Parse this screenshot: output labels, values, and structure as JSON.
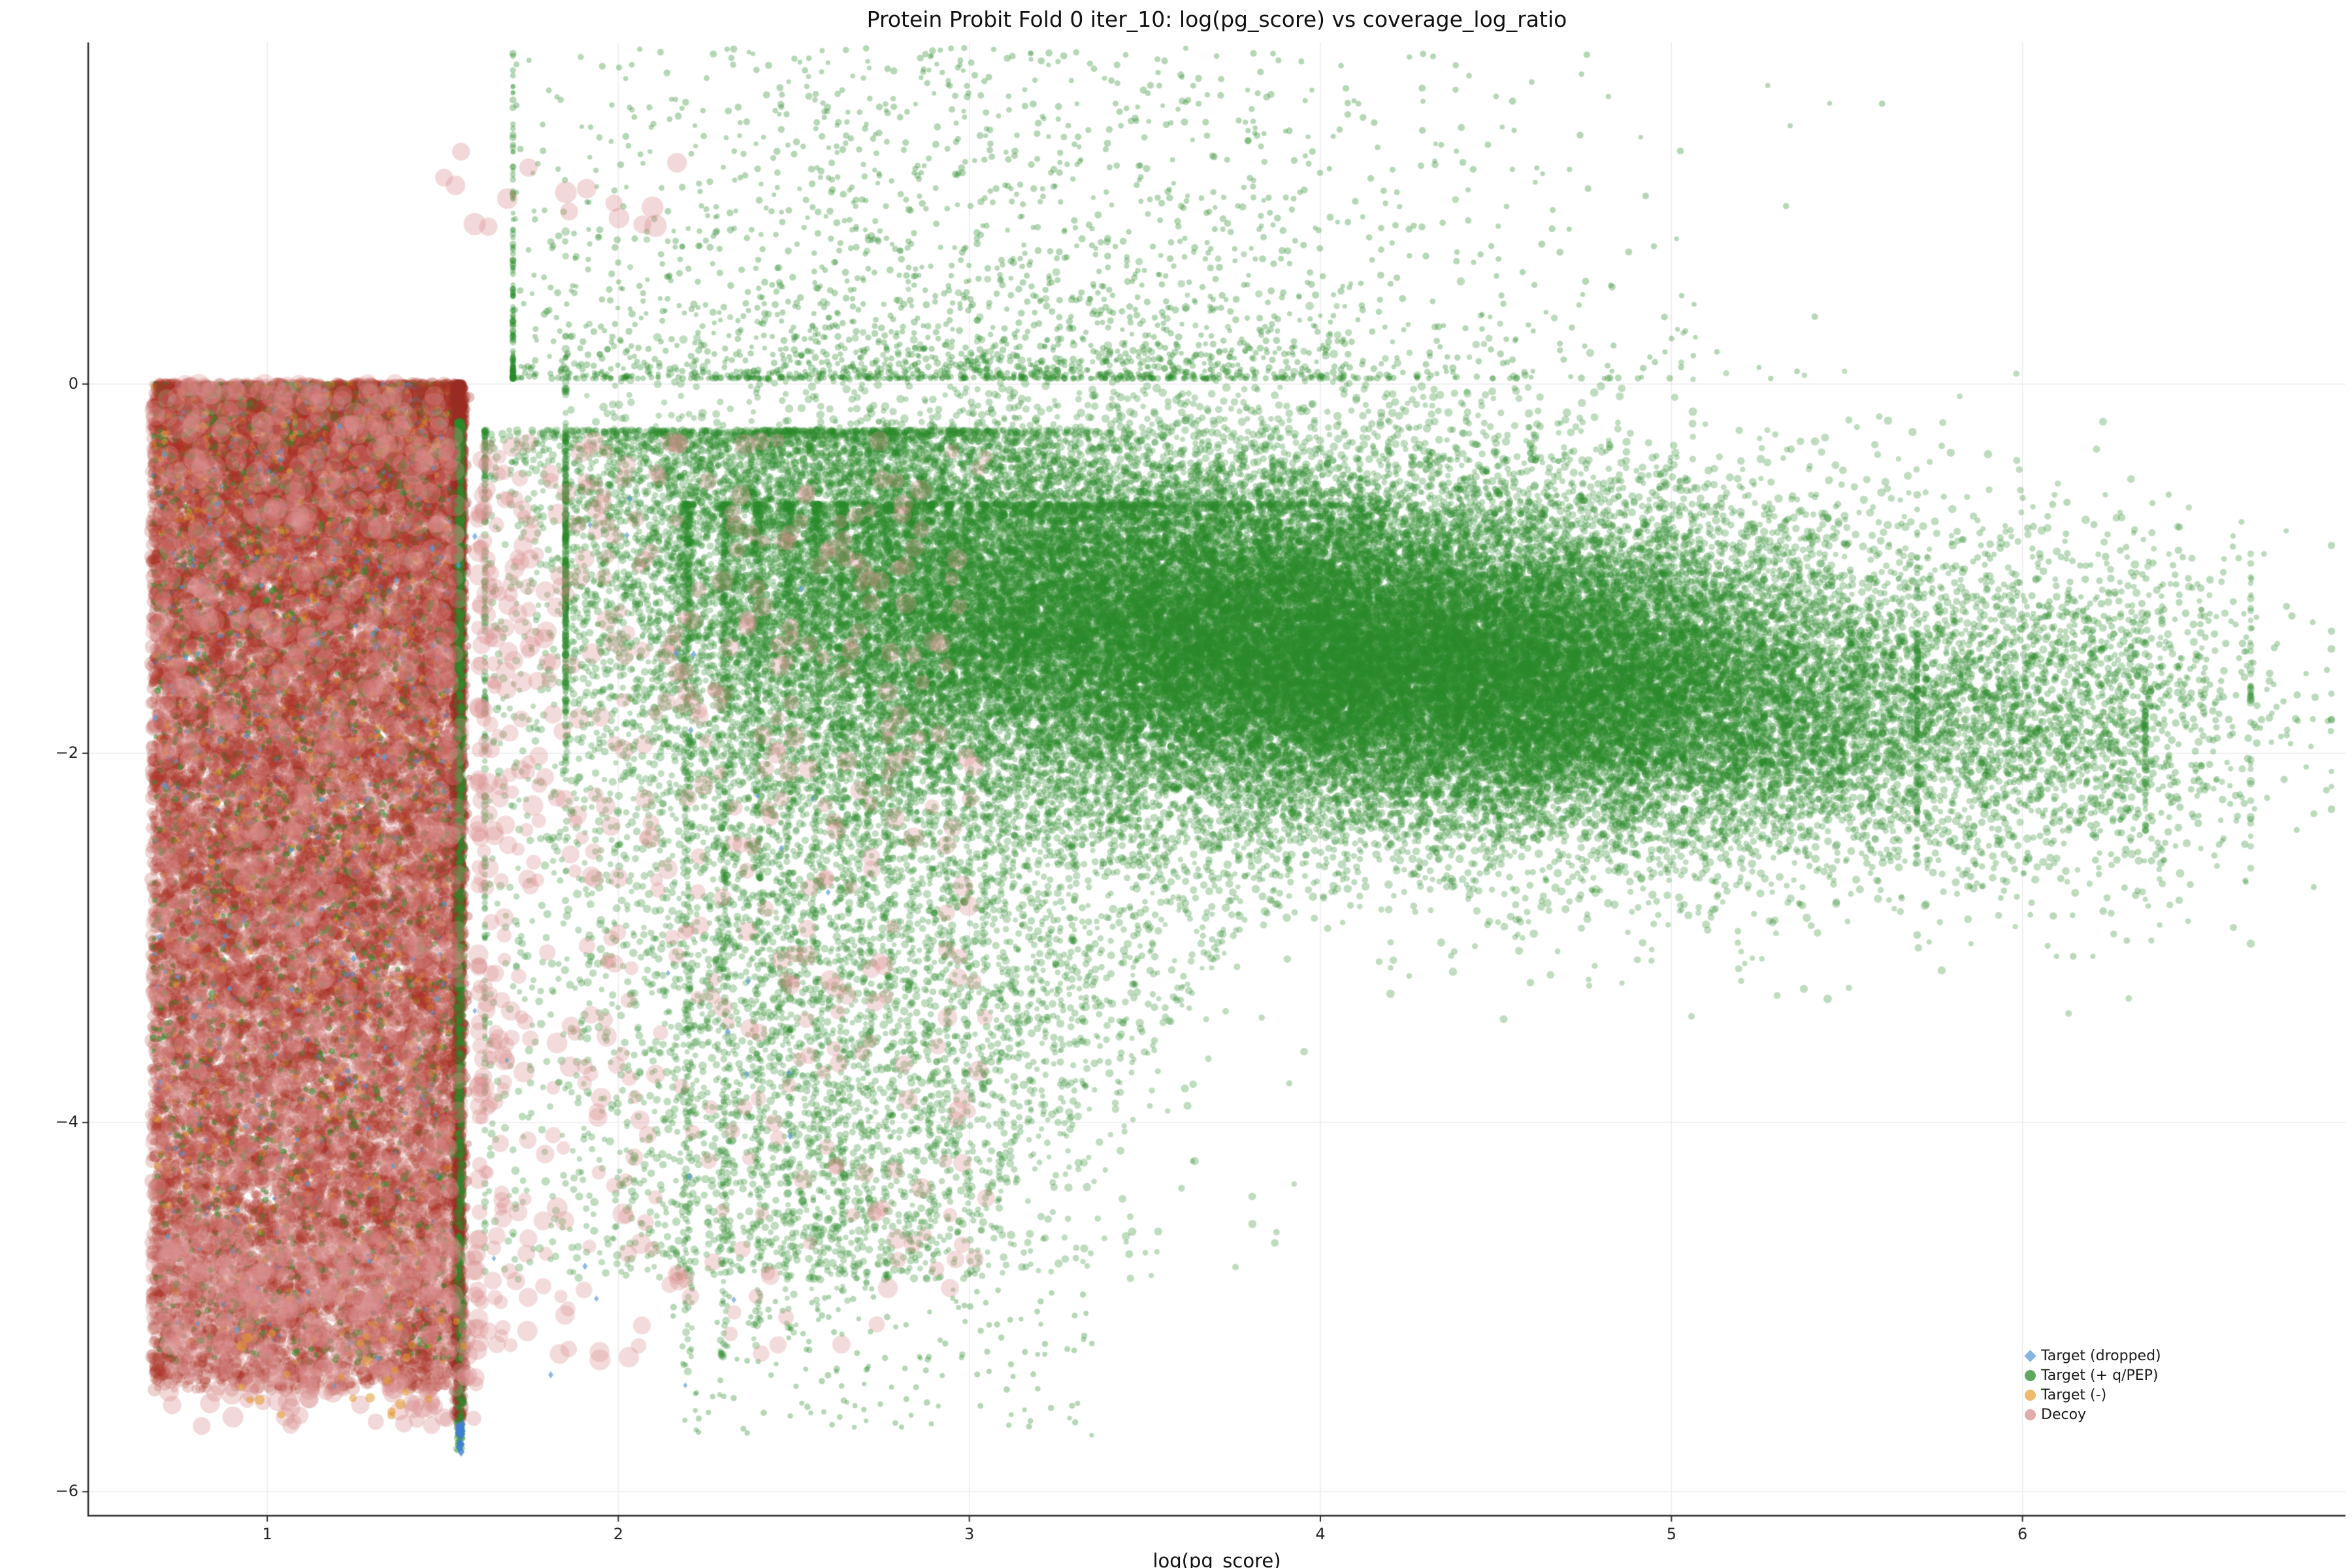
{
  "chart_data": {
    "type": "scatter",
    "title": "Protein Probit Fold 0 iter_10: log(pg_score) vs coverage_log_ratio",
    "xlabel": "log(pg_score)",
    "ylabel": "",
    "xlim": [
      0.49,
      6.92
    ],
    "ylim": [
      -6.13,
      1.85
    ],
    "grid": true,
    "grid_color": "#ececec",
    "spine_color": "#2b2b2b",
    "xticks": [
      {
        "v": 1,
        "label": "1"
      },
      {
        "v": 2,
        "label": "2"
      },
      {
        "v": 3,
        "label": "3"
      },
      {
        "v": 4,
        "label": "4"
      },
      {
        "v": 5,
        "label": "5"
      },
      {
        "v": 6,
        "label": "6"
      }
    ],
    "yticks": [
      {
        "v": 0,
        "label": "0"
      },
      {
        "v": -2,
        "label": "−2"
      },
      {
        "v": -4,
        "label": "−4"
      },
      {
        "v": -6,
        "label": "−6"
      }
    ],
    "legend": {
      "position": "bottom-right",
      "entries": [
        {
          "label": "Target (dropped)",
          "color": "#5b9bd5",
          "marker": "diamond",
          "slug": "target-dropped"
        },
        {
          "label": "Target (+ q/PEP)",
          "color": "#2a8b2a",
          "marker": "circle",
          "slug": "target-plus-qpep"
        },
        {
          "label": "Target (-)",
          "color": "#e8a33d",
          "marker": "circle",
          "slug": "target-minus"
        },
        {
          "label": "Decoy",
          "color": "#d99090",
          "marker": "circle",
          "slug": "decoy"
        }
      ]
    },
    "clusters": [
      {
        "name": "decoy-block-under",
        "color": "#ab3226",
        "alpha": 0.22,
        "r": [
          5,
          12
        ],
        "count": 14000,
        "x": {
          "type": "uniform",
          "a": 0.67,
          "b": 1.555
        },
        "y": {
          "type": "pow",
          "a": 0,
          "b": -5.45,
          "p": 1.35
        }
      },
      {
        "name": "block-specks-green",
        "color": "#2f8f2f",
        "alpha": 0.55,
        "r": [
          3.5,
          5.5
        ],
        "count": 2600,
        "x": {
          "type": "uniform",
          "a": 0.675,
          "b": 1.552
        },
        "y": {
          "type": "pow",
          "a": 0,
          "b": -5.3,
          "p": 1.5
        }
      },
      {
        "name": "block-specks-orange",
        "color": "#e39b2d",
        "alpha": 0.5,
        "r": [
          3.5,
          6
        ],
        "count": 900,
        "x": {
          "type": "uniform",
          "a": 0.675,
          "b": 1.552
        },
        "y": {
          "type": "pow",
          "a": 0,
          "b": -5.3,
          "p": 1.5
        }
      },
      {
        "name": "block-specks-blue",
        "color": "#4f94d4",
        "alpha": 0.65,
        "r": [
          3,
          4.5
        ],
        "count": 450,
        "x": {
          "type": "uniform",
          "a": 0.675,
          "b": 1.552
        },
        "y": {
          "type": "pow",
          "a": 0,
          "b": -5.3,
          "p": 1.5
        }
      },
      {
        "name": "decoy-block-over",
        "color": "#a93226",
        "alpha": 0.2,
        "r": [
          5,
          11
        ],
        "count": 7000,
        "x": {
          "type": "uniform",
          "a": 0.67,
          "b": 1.555
        },
        "y": {
          "type": "pow",
          "a": 0,
          "b": -5.4,
          "p": 1.3
        }
      },
      {
        "name": "decoy-edge-line",
        "color": "#9c2f23",
        "alpha": 0.3,
        "r": [
          4,
          9
        ],
        "count": 2600,
        "x": {
          "type": "normal",
          "mean": 1.547,
          "sd": 0.008,
          "clip": [
            1.5,
            1.58
          ]
        },
        "y": {
          "type": "pow",
          "a": 0,
          "b": -5.65,
          "p": 1.5
        }
      },
      {
        "name": "target-band",
        "color": "#2a8b2a",
        "alpha": 0.3,
        "r": [
          4,
          6.5
        ],
        "count": 34000,
        "x": {
          "type": "normal",
          "mean": 3.95,
          "sd": 0.9,
          "clip": [
            1.85,
            6.65
          ]
        },
        "y": {
          "type": "trend",
          "m0": -0.7,
          "slope": -0.17,
          "sd": 0.52
        }
      },
      {
        "name": "target-core",
        "color": "#2a8b2a",
        "alpha": 0.3,
        "r": [
          4,
          6.5
        ],
        "count": 15000,
        "x": {
          "type": "normal",
          "mean": 4.35,
          "sd": 0.75,
          "clip": [
            2.2,
            6.35
          ]
        },
        "y": {
          "type": "trend",
          "m0": -0.85,
          "slope": -0.17,
          "sd": 0.34
        }
      },
      {
        "name": "target-left-spread",
        "color": "#2a8b2a",
        "alpha": 0.3,
        "r": [
          4,
          6.5
        ],
        "count": 9000,
        "x": {
          "type": "normal",
          "mean": 2.55,
          "sd": 0.45,
          "clip": [
            1.62,
            4.2
          ]
        },
        "y": {
          "type": "pow",
          "a": -0.25,
          "b": -4.85,
          "p": 1.8
        }
      },
      {
        "name": "target-edge-line",
        "color": "#2a8b2a",
        "alpha": 0.35,
        "r": [
          3.5,
          5.5
        ],
        "count": 1300,
        "x": {
          "type": "normal",
          "mean": 1.549,
          "sd": 0.006,
          "clip": [
            1.53,
            1.57
          ]
        },
        "y": {
          "type": "pow",
          "a": -0.2,
          "b": -5.78,
          "p": 1.35
        }
      },
      {
        "name": "target-stripes",
        "type": "stripes",
        "color": "#2a8b2a",
        "alpha": 0.3,
        "r": [
          3.5,
          6
        ],
        "nMin": 9,
        "nMax": 64,
        "countStart": 380,
        "decay": 0.94,
        "jitter": 0.009,
        "top": -0.65,
        "bottomStart": -5.35,
        "bottomSlope": 0.07,
        "bottomCap": -2.7,
        "yPow": 2.2
      },
      {
        "name": "target-top-sparse",
        "color": "#2a8b2a",
        "alpha": 0.35,
        "r": [
          3.5,
          5.5
        ],
        "count": 2400,
        "x": {
          "type": "normal",
          "mean": 3.0,
          "sd": 0.85,
          "clip": [
            1.7,
            5.6
          ]
        },
        "y": {
          "type": "pow",
          "a": 0.03,
          "b": 1.82,
          "p": 2.6
        }
      },
      {
        "name": "target-right",
        "color": "#2a8b2a",
        "alpha": 0.32,
        "r": [
          4,
          6
        ],
        "count": 1300,
        "x": {
          "type": "normal",
          "mean": 6.15,
          "sd": 0.3,
          "clip": [
            5.7,
            6.88
          ]
        },
        "y": {
          "type": "normal",
          "mean": -1.75,
          "sd": 0.45,
          "clip": [
            -3.1,
            -0.6
          ]
        }
      },
      {
        "name": "target-bottom-sparse",
        "color": "#2a8b2a",
        "alpha": 0.35,
        "r": [
          3.5,
          5
        ],
        "count": 160,
        "x": {
          "type": "uniform",
          "a": 2.15,
          "b": 3.35
        },
        "y": {
          "type": "uniform",
          "a": -4.9,
          "b": -5.7
        }
      },
      {
        "name": "decoy-large-block",
        "color": "#d99090",
        "alpha": 0.3,
        "r": [
          12,
          18
        ],
        "count": 900,
        "x": {
          "type": "uniform",
          "a": 0.68,
          "b": 1.55
        },
        "y": {
          "type": "pow",
          "a": 0,
          "b": -5.2,
          "p": 1.3
        }
      },
      {
        "name": "decoy-below-block",
        "color": "#d99090",
        "alpha": 0.35,
        "r": [
          11,
          16
        ],
        "count": 260,
        "x": {
          "type": "uniform",
          "a": 0.7,
          "b": 1.6
        },
        "y": {
          "type": "uniform",
          "a": -4.6,
          "b": -5.65
        }
      },
      {
        "name": "decoy-scatter",
        "color": "#d99090",
        "alpha": 0.32,
        "r": [
          10,
          16
        ],
        "count": 620,
        "x": {
          "type": "pow",
          "a": 1.6,
          "b": 3.05,
          "p": 1.9
        },
        "y": {
          "type": "pow",
          "a": -0.3,
          "b": -5.3,
          "p": 1.15
        }
      },
      {
        "name": "decoy-top",
        "color": "#d99090",
        "alpha": 0.35,
        "r": [
          13,
          18
        ],
        "count": 16,
        "x": {
          "type": "uniform",
          "a": 1.48,
          "b": 2.2
        },
        "y": {
          "type": "uniform",
          "a": 0.8,
          "b": 1.28
        }
      },
      {
        "name": "orange-below-block",
        "color": "#e39b2d",
        "alpha": 0.55,
        "r": [
          5,
          8
        ],
        "count": 28,
        "x": {
          "type": "uniform",
          "a": 0.85,
          "b": 1.58
        },
        "y": {
          "type": "uniform",
          "a": -5.05,
          "b": -5.6
        }
      },
      {
        "name": "dropped-bottom-cluster",
        "color": "#3f7fd4",
        "alpha": 0.8,
        "marker": "diamond",
        "r": [
          5,
          7
        ],
        "count": 14,
        "x": {
          "type": "normal",
          "mean": 1.551,
          "sd": 0.004,
          "clip": [
            1.54,
            1.562
          ]
        },
        "y": {
          "type": "normal",
          "mean": -5.7,
          "sd": 0.06,
          "clip": [
            -5.82,
            -5.55
          ]
        }
      },
      {
        "name": "dropped-sparse",
        "color": "#5b9bd5",
        "alpha": 0.7,
        "marker": "diamond",
        "r": [
          3.5,
          5
        ],
        "count": 60,
        "x": {
          "type": "pow",
          "a": 0.7,
          "b": 2.6,
          "p": 1.3
        },
        "y": {
          "type": "pow",
          "a": -0.1,
          "b": -5.5,
          "p": 1.0
        }
      }
    ]
  }
}
